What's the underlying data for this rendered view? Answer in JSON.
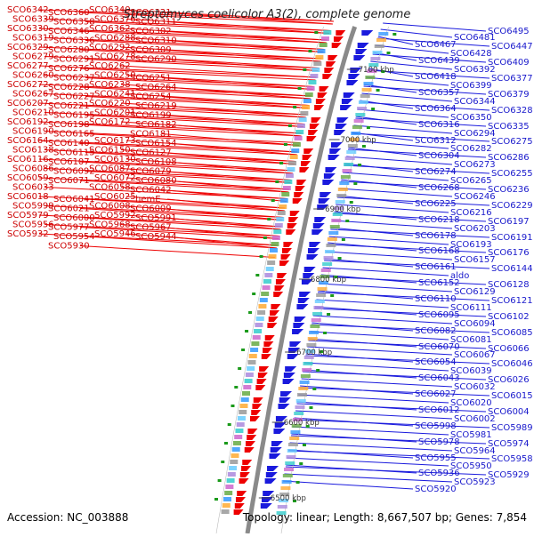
{
  "header": {
    "title": "Streptomyces coelicolor A3(2), complete genome"
  },
  "footer": {
    "accession": "Accession: NC_003888",
    "summary": "Topology: linear; Length: 8,667,507 bp; Genes: 7,854"
  },
  "colors": {
    "forward": "#ee0000",
    "reverse": "#1a1add",
    "axis": "#8a8a8a",
    "tick": "#1a9a1a"
  },
  "kbp_ticks": [
    "7100 kbp",
    "7000 kbp",
    "6900 kbp",
    "6800 kbp",
    "6700 kbp",
    "6600 kbp",
    "6500 kbp"
  ],
  "left_labels": [
    "SCO6342",
    "SCO6360",
    "SCO6340",
    "SCO6321",
    "SCO6339",
    "SCO6358",
    "SCO6376",
    "SCO6311",
    "SCO6330",
    "SCO6346",
    "SCO6362",
    "SCO6302",
    "SCO6319",
    "SCO6336",
    "SCO6288",
    "SCO6310",
    "SCO6329",
    "SCO6280",
    "SCO6292",
    "SCO6309",
    "SCO6279",
    "SCO6291",
    "SCO6278",
    "SCO6290",
    "SCO6277",
    "SCO6276",
    "SCO6262",
    "SCO6251",
    "SCO6260",
    "SCO6237",
    "SCO6250",
    "SCO6264",
    "SCO6272",
    "SCO6228",
    "SCO6238",
    "SCO6254",
    "SCO6267",
    "SCO6227",
    "SCO6241",
    "SCO6219",
    "SCO6207",
    "SCO6221",
    "SCO6220",
    "SCO6199",
    "SCO6210",
    "SCO6195",
    "SCO6201",
    "SCO6182",
    "SCO6192",
    "SCO6198",
    "SCO6172",
    "SCO6181",
    "SCO6190",
    "SCO6165",
    "SCO6173",
    "SCO6154",
    "SCO6164",
    "SCO6140",
    "SCO6150",
    "SCO6127",
    "SCO6138",
    "SCO6115",
    "SCO6130",
    "SCO6108",
    "SCO6116",
    "SCO6107",
    "SCO6087",
    "SCO6079",
    "SCO6086",
    "SCO6092",
    "SCO6072",
    "SCO6080",
    "SCO6059",
    "SCO6071",
    "SCO6058",
    "SCO6042",
    "SCO6033",
    "SCO6041",
    "SCO6025",
    "hemE",
    "SCO6018",
    "SCO6021",
    "SCO6008",
    "SCO6009",
    "SCO5999",
    "SCO6000",
    "SCO5992",
    "SCO5991",
    "SCO5979",
    "SCO5977",
    "SCO5968",
    "SCO5967",
    "SCO5956",
    "SCO5954",
    "SCO5946",
    "SCO5944",
    "SCO5932",
    "SCO5930"
  ],
  "right_labels": [
    "SCO6495",
    "SCO6481",
    "SCO6467",
    "SCO6447",
    "SCO6428",
    "SCO6439",
    "SCO6409",
    "SCO6392",
    "SCO6418",
    "SCO6377",
    "SCO6399",
    "SCO6357",
    "SCO6379",
    "SCO6344",
    "SCO6364",
    "SCO6328",
    "SCO6350",
    "SCO6316",
    "SCO6335",
    "SCO6294",
    "SCO6312",
    "SCO6275",
    "SCO6282",
    "SCO6304",
    "SCO6286",
    "SCO6273",
    "SCO6274",
    "SCO6255",
    "SCO6265",
    "SCO6268",
    "SCO6236",
    "SCO6246",
    "SCO6225",
    "SCO6229",
    "SCO6216",
    "SCO6218",
    "SCO6197",
    "SCO6203",
    "SCO6178",
    "SCO6191",
    "SCO6193",
    "SCO6168",
    "SCO6176",
    "SCO6157",
    "SCO6161",
    "SCO6144",
    "aldo",
    "SCO6152",
    "SCO6128",
    "SCO6129",
    "SCO6110",
    "SCO6121",
    "SCO6111",
    "SCO6095",
    "SCO6102",
    "SCO6094",
    "SCO6082",
    "SCO6085",
    "SCO6081",
    "SCO6070",
    "SCO6066",
    "SCO6067",
    "SCO6054",
    "SCO6046",
    "SCO6039",
    "SCO6043",
    "SCO6026",
    "SCO6032",
    "SCO6027",
    "SCO6015",
    "SCO6020",
    "SCO6012",
    "SCO6004",
    "SCO6002",
    "SCO5998",
    "SCO5989",
    "SCO5981",
    "SCO5978",
    "SCO5974",
    "SCO5964",
    "SCO5955",
    "SCO5958",
    "SCO5950",
    "SCO5936",
    "SCO5929",
    "SCO5923",
    "SCO5920"
  ]
}
